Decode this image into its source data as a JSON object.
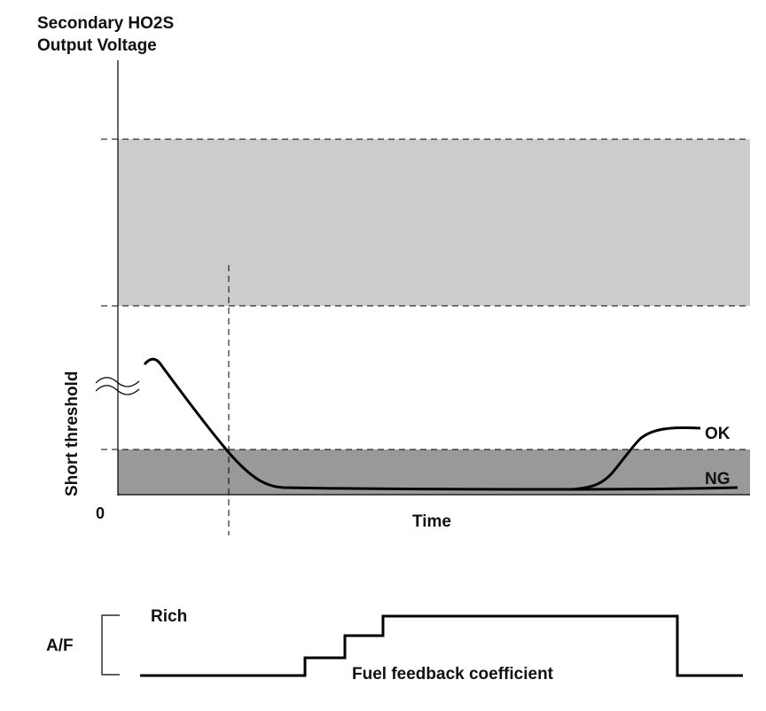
{
  "upper_chart": {
    "y_title_line1": "Secondary HO2S",
    "y_title_line2": "Output Voltage",
    "vertical_label": "Short threshold",
    "origin_label": "0",
    "x_label": "Time",
    "curve_labels": {
      "ok": "OK",
      "ng": "NG"
    },
    "colors": {
      "upper_band": "#cccccc",
      "lower_band": "#999999",
      "lines": "#000000"
    }
  },
  "lower_chart": {
    "axis_label": "A/F",
    "rich_label": "Rich",
    "signal_label": "Fuel feedback coefficient"
  }
}
